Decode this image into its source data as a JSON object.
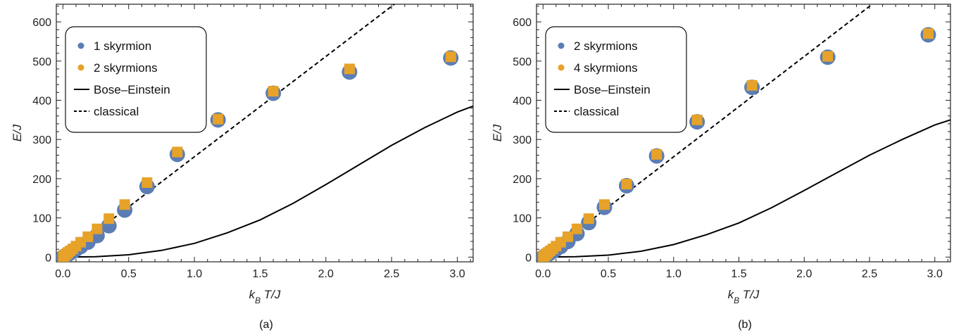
{
  "chart_data": [
    {
      "type": "scatter",
      "caption": "(a)",
      "xlabel": "k_B T/J",
      "ylabel": "E/J",
      "xlim": [
        -0.05,
        3.12
      ],
      "ylim": [
        -12,
        645
      ],
      "xticks": [
        0.0,
        0.5,
        1.0,
        1.5,
        2.0,
        2.5,
        3.0
      ],
      "xtick_labels": [
        "0.0",
        "0.5",
        "1.0",
        "1.5",
        "2.0",
        "2.5",
        "3.0"
      ],
      "yticks": [
        0,
        100,
        200,
        300,
        400,
        500,
        600
      ],
      "ytick_labels": [
        "0",
        "100",
        "200",
        "300",
        "400",
        "500",
        "600"
      ],
      "legend_position": "top-left",
      "series": [
        {
          "name": "1 skyrmion",
          "kind": "points",
          "marker": "circle",
          "color": "#5b7db5",
          "x": [
            0.003,
            0.006,
            0.01,
            0.015,
            0.02,
            0.03,
            0.04,
            0.055,
            0.075,
            0.1,
            0.135,
            0.19,
            0.26,
            0.35,
            0.47,
            0.64,
            0.87,
            1.18,
            1.6,
            2.18,
            2.95
          ],
          "y": [
            0.5,
            1,
            1.8,
            2.7,
            3.6,
            5.5,
            7.5,
            10.5,
            14.5,
            20,
            27,
            38,
            55,
            80,
            120,
            180,
            262,
            350,
            418,
            472,
            508
          ]
        },
        {
          "name": "2 skyrmions",
          "kind": "points",
          "marker": "square",
          "color": "#e6a229",
          "x": [
            0.003,
            0.006,
            0.01,
            0.015,
            0.02,
            0.03,
            0.04,
            0.055,
            0.075,
            0.1,
            0.135,
            0.19,
            0.26,
            0.35,
            0.47,
            0.64,
            0.87,
            1.18,
            1.6,
            2.18,
            2.95
          ],
          "y": [
            1,
            2,
            3,
            4.5,
            6,
            9,
            12,
            16,
            21,
            28,
            38,
            52,
            72,
            98,
            134,
            190,
            268,
            352,
            423,
            480,
            511
          ]
        },
        {
          "name": "Bose–Einstein",
          "kind": "line",
          "style": "solid",
          "color": "#000000",
          "x": [
            0,
            0.25,
            0.5,
            0.75,
            1.0,
            1.25,
            1.5,
            1.75,
            2.0,
            2.25,
            2.5,
            2.75,
            3.0,
            3.12
          ],
          "y": [
            0,
            1,
            6,
            17,
            35,
            62,
            95,
            137,
            185,
            235,
            285,
            330,
            370,
            385
          ]
        },
        {
          "name": "classical",
          "kind": "line",
          "style": "dashed",
          "color": "#000000",
          "x": [
            0,
            2.56
          ],
          "y": [
            0,
            655
          ]
        }
      ]
    },
    {
      "type": "scatter",
      "caption": "(b)",
      "xlabel": "k_B T/J",
      "ylabel": "E/J",
      "xlim": [
        -0.05,
        3.12
      ],
      "ylim": [
        -12,
        645
      ],
      "xticks": [
        0.0,
        0.5,
        1.0,
        1.5,
        2.0,
        2.5,
        3.0
      ],
      "xtick_labels": [
        "0.0",
        "0.5",
        "1.0",
        "1.5",
        "2.0",
        "2.5",
        "3.0"
      ],
      "yticks": [
        0,
        100,
        200,
        300,
        400,
        500,
        600
      ],
      "ytick_labels": [
        "0",
        "100",
        "200",
        "300",
        "400",
        "500",
        "600"
      ],
      "legend_position": "top-left",
      "series": [
        {
          "name": "2 skyrmions",
          "kind": "points",
          "marker": "circle",
          "color": "#5b7db5",
          "x": [
            0.003,
            0.006,
            0.01,
            0.015,
            0.02,
            0.03,
            0.04,
            0.055,
            0.075,
            0.1,
            0.135,
            0.19,
            0.26,
            0.35,
            0.47,
            0.64,
            0.87,
            1.18,
            1.6,
            2.18,
            2.95
          ],
          "y": [
            0.5,
            1,
            1.8,
            2.7,
            3.6,
            5.5,
            7.5,
            10.5,
            14.5,
            20,
            27,
            40,
            60,
            88,
            127,
            182,
            258,
            345,
            433,
            510,
            567
          ]
        },
        {
          "name": "4 skyrmions",
          "kind": "points",
          "marker": "square",
          "color": "#e6a229",
          "x": [
            0.003,
            0.006,
            0.01,
            0.015,
            0.02,
            0.03,
            0.04,
            0.055,
            0.075,
            0.1,
            0.135,
            0.19,
            0.26,
            0.35,
            0.47,
            0.64,
            0.87,
            1.18,
            1.6,
            2.18,
            2.95
          ],
          "y": [
            1,
            2,
            3,
            4.5,
            6,
            9,
            12,
            16,
            21,
            28,
            38,
            52,
            72,
            98,
            134,
            186,
            262,
            350,
            438,
            512,
            570
          ]
        },
        {
          "name": "Bose–Einstein",
          "kind": "line",
          "style": "solid",
          "color": "#000000",
          "x": [
            0,
            0.25,
            0.5,
            0.75,
            1.0,
            1.25,
            1.5,
            1.75,
            2.0,
            2.25,
            2.5,
            2.75,
            3.0,
            3.12
          ],
          "y": [
            0,
            1,
            5,
            15,
            32,
            57,
            87,
            126,
            170,
            215,
            260,
            300,
            337,
            350
          ]
        },
        {
          "name": "classical",
          "kind": "line",
          "style": "dashed",
          "color": "#000000",
          "x": [
            0,
            2.56
          ],
          "y": [
            0,
            655
          ]
        }
      ]
    }
  ]
}
